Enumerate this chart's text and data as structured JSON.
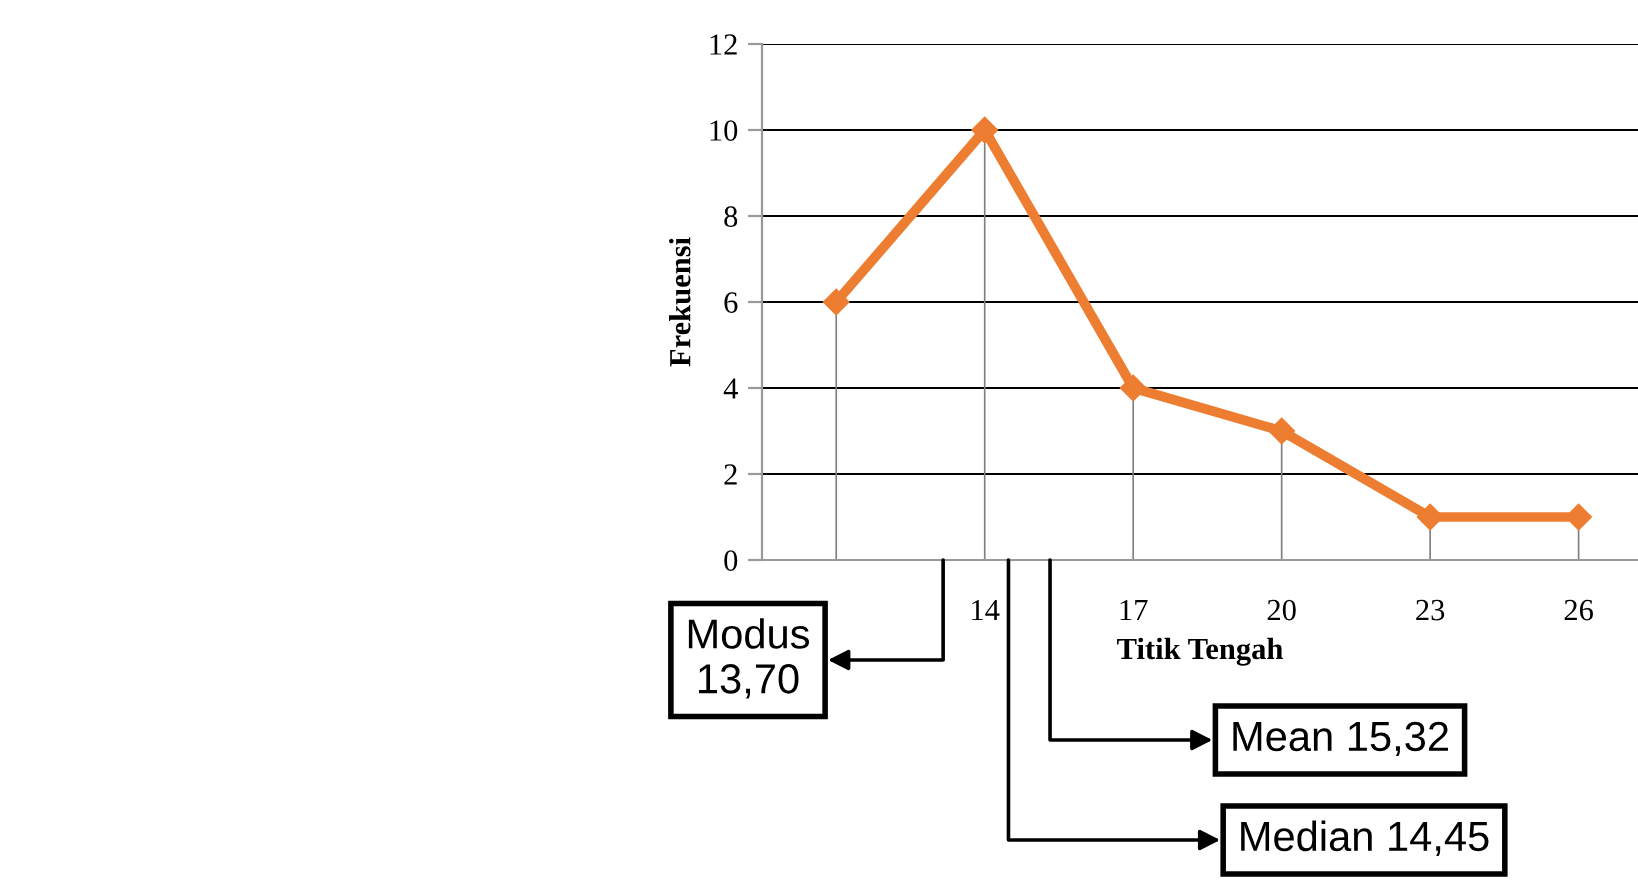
{
  "chart_data": {
    "type": "line",
    "ylabel": "Frekuensi",
    "xlabel": "Titik Tengah",
    "categories": [
      null,
      "14",
      "17",
      "20",
      "23",
      "26"
    ],
    "series": [
      {
        "color": "#ed7d31",
        "values": [
          6,
          10,
          4,
          3,
          1,
          1
        ],
        "errors": [
          [
            6,
            0
          ],
          [
            10,
            0
          ],
          [
            4,
            0
          ],
          [
            3,
            0
          ],
          [
            1,
            0
          ],
          [
            1,
            0
          ]
        ]
      }
    ],
    "ylim": [
      0,
      12
    ],
    "yticks": [
      0,
      2,
      4,
      6,
      8,
      10,
      12
    ],
    "grid": "y",
    "marker": "diamond",
    "line_style": "solid",
    "annotations": [
      "Modus\n13,70",
      "Mean 15,32",
      "Median 14,45"
    ]
  }
}
